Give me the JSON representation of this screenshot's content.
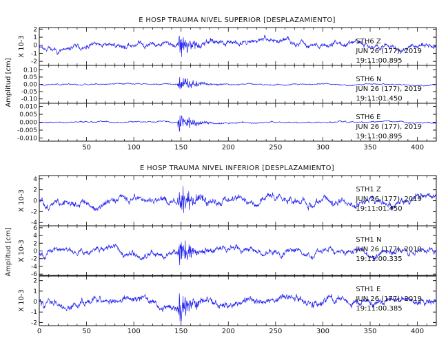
{
  "chart_data": [
    {
      "type": "line",
      "title": "E HOSP TRAUMA NIVEL SUPERIOR [DESPLAZAMIENTO]",
      "ylabel": "Amplitud [cm]",
      "xlim": [
        0,
        420
      ],
      "xticks": [
        50,
        100,
        150,
        200,
        250,
        300,
        350,
        400
      ],
      "traces": [
        {
          "name": "STH6",
          "component": "Z",
          "date": "JUN 26 (177), 2019",
          "time": "19:11:00.895",
          "exponent": "X 10-3",
          "ylim": [
            -2.5,
            2.2
          ],
          "yticks": [
            "2",
            "1",
            "0",
            "-1",
            "-2"
          ],
          "yticks_val": [
            2,
            1,
            0,
            -1,
            -2
          ],
          "noise": 0.45,
          "burst": 2.0,
          "seed": 11
        },
        {
          "name": "STH6",
          "component": "N",
          "date": "JUN 26 (177), 2019",
          "time": "19:11:01.450",
          "exponent": "",
          "ylim": [
            -0.13,
            0.13
          ],
          "yticks": [
            "0.10",
            "0.05",
            "0.00",
            "-0.05",
            "-0.10"
          ],
          "yticks_val": [
            0.1,
            0.05,
            0.0,
            -0.05,
            -0.1
          ],
          "noise": 0.006,
          "burst": 0.08,
          "seed": 23
        },
        {
          "name": "STH6",
          "component": "E",
          "date": "JUN 26 (177), 2019",
          "time": "19:11:00.895",
          "exponent": "",
          "ylim": [
            -0.012,
            0.012
          ],
          "yticks": [
            "0.010",
            "0.005",
            "0.000",
            "-0.005",
            "-0.010"
          ],
          "yticks_val": [
            0.01,
            0.005,
            0.0,
            -0.005,
            -0.01
          ],
          "noise": 0.0006,
          "burst": 0.009,
          "seed": 37
        }
      ]
    },
    {
      "type": "line",
      "title": "E HOSP TRAUMA NIVEL INFERIOR [DESPLAZAMIENTO]",
      "ylabel": "Amplitud [cm]",
      "xlim": [
        0,
        420
      ],
      "xticks": [
        0,
        50,
        100,
        150,
        200,
        250,
        300,
        350,
        400
      ],
      "traces": [
        {
          "name": "STH1",
          "component": "Z",
          "date": "JUN 26 (177), 2019",
          "time": "19:11:01.450",
          "exponent": "X 10-3",
          "ylim": [
            -4.6,
            4.6
          ],
          "yticks": [
            "4",
            "2",
            "0",
            "-2",
            "-4"
          ],
          "yticks_val": [
            4,
            2,
            0,
            -2,
            -4
          ],
          "noise": 0.9,
          "burst": 4.2,
          "seed": 51
        },
        {
          "name": "STH1",
          "component": "N",
          "date": "JUN 26 (177), 2019",
          "time": "19:11:00.335",
          "exponent": "X 10-3",
          "ylim": [
            -6.5,
            6.5
          ],
          "yticks": [
            "6",
            "4",
            "2",
            "0",
            "-2",
            "-4",
            "-6"
          ],
          "yticks_val": [
            6,
            4,
            2,
            0,
            -2,
            -4,
            -6
          ],
          "noise": 1.1,
          "burst": 4.8,
          "seed": 67
        },
        {
          "name": "STH1",
          "component": "E",
          "date": "JUN 26 (177), 2019",
          "time": "19:11:00.385",
          "exponent": "X 10-3",
          "ylim": [
            -2.3,
            2.5
          ],
          "yticks": [
            "2",
            "1",
            "0",
            "-1",
            "-2"
          ],
          "yticks_val": [
            2,
            1,
            0,
            -1,
            -2
          ],
          "noise": 0.5,
          "burst": 1.9,
          "seed": 83
        }
      ]
    }
  ],
  "colors": {
    "trace": "#2222ee",
    "axis": "#111111"
  }
}
